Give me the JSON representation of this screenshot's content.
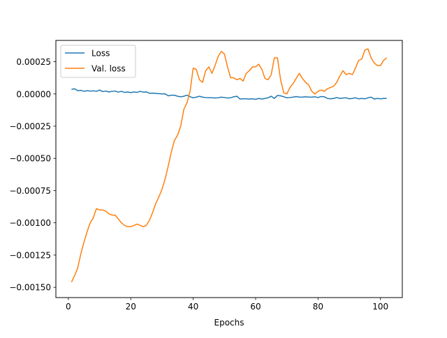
{
  "chart_data": {
    "type": "line",
    "title": "",
    "xlabel": "Epochs",
    "ylabel": "",
    "xlim": [
      -4,
      107
    ],
    "ylim": [
      -0.00158,
      0.000415
    ],
    "x_ticks": [
      0,
      20,
      40,
      60,
      80,
      100
    ],
    "x_tick_labels": [
      "0",
      "20",
      "40",
      "60",
      "80",
      "100"
    ],
    "y_ticks": [
      0.00025,
      0.0,
      -0.00025,
      -0.0005,
      -0.00075,
      -0.001,
      -0.00125,
      -0.0015
    ],
    "y_tick_labels": [
      "0.00025",
      "0.00000",
      "−0.00025",
      "−0.00050",
      "−0.00075",
      "−0.00100",
      "−0.00125",
      "−0.00150"
    ],
    "grid": false,
    "legend_position": "top-left",
    "series": [
      {
        "name": "Loss",
        "color": "#1f77b4",
        "points": [
          [
            1,
            3.5e-05
          ],
          [
            2,
            4e-05
          ],
          [
            3,
            2.5e-05
          ],
          [
            4,
            2.8e-05
          ],
          [
            5,
            2e-05
          ],
          [
            6,
            2.5e-05
          ],
          [
            7,
            2.2e-05
          ],
          [
            8,
            2.4e-05
          ],
          [
            9,
            2e-05
          ],
          [
            10,
            3e-05
          ],
          [
            11,
            1.8e-05
          ],
          [
            12,
            2.2e-05
          ],
          [
            13,
            1.5e-05
          ],
          [
            14,
            2e-05
          ],
          [
            15,
            2.2e-05
          ],
          [
            16,
            1.4e-05
          ],
          [
            17,
            2e-05
          ],
          [
            18,
            1.2e-05
          ],
          [
            19,
            1.5e-05
          ],
          [
            20,
            1e-05
          ],
          [
            21,
            1.5e-05
          ],
          [
            22,
            1.2e-05
          ],
          [
            23,
            2e-05
          ],
          [
            24,
            1.4e-05
          ],
          [
            25,
            1.5e-05
          ],
          [
            26,
            5e-06
          ],
          [
            27,
            6e-06
          ],
          [
            28,
            4e-06
          ],
          [
            29,
            2e-06
          ],
          [
            30,
            0.0
          ],
          [
            31,
            1e-06
          ],
          [
            32,
            -1.5e-05
          ],
          [
            33,
            -1e-05
          ],
          [
            34,
            -1e-05
          ],
          [
            35,
            -1.8e-05
          ],
          [
            36,
            -2.2e-05
          ],
          [
            37,
            -1.8e-05
          ],
          [
            38,
            -1e-05
          ],
          [
            39,
            -2.2e-05
          ],
          [
            40,
            -3e-05
          ],
          [
            41,
            -2.5e-05
          ],
          [
            42,
            -1.8e-05
          ],
          [
            43,
            -2.5e-05
          ],
          [
            44,
            -2.8e-05
          ],
          [
            45,
            -3e-05
          ],
          [
            46,
            -3e-05
          ],
          [
            47,
            -3.2e-05
          ],
          [
            48,
            -3e-05
          ],
          [
            49,
            -2.5e-05
          ],
          [
            50,
            -2.8e-05
          ],
          [
            51,
            -3.2e-05
          ],
          [
            52,
            -3e-05
          ],
          [
            53,
            -2.2e-05
          ],
          [
            54,
            -1.8e-05
          ],
          [
            55,
            -4e-05
          ],
          [
            56,
            -3.8e-05
          ],
          [
            57,
            -3.8e-05
          ],
          [
            58,
            -4e-05
          ],
          [
            59,
            -3.8e-05
          ],
          [
            60,
            -4.2e-05
          ],
          [
            61,
            -3.5e-05
          ],
          [
            62,
            -4e-05
          ],
          [
            63,
            -3.5e-05
          ],
          [
            64,
            -3e-05
          ],
          [
            65,
            -1.8e-05
          ],
          [
            66,
            -3.5e-05
          ],
          [
            67,
            -1.2e-05
          ],
          [
            68,
            -1.5e-05
          ],
          [
            69,
            -2.2e-05
          ],
          [
            70,
            -3e-05
          ],
          [
            71,
            -2.8e-05
          ],
          [
            72,
            -2.5e-05
          ],
          [
            73,
            -2e-05
          ],
          [
            74,
            -2.5e-05
          ],
          [
            75,
            -2.5e-05
          ],
          [
            76,
            -2.2e-05
          ],
          [
            77,
            -2.5e-05
          ],
          [
            78,
            -2.5e-05
          ],
          [
            79,
            -2.2e-05
          ],
          [
            80,
            -2.8e-05
          ],
          [
            81,
            -2e-05
          ],
          [
            82,
            -2.2e-05
          ],
          [
            83,
            -3.5e-05
          ],
          [
            84,
            -3.8e-05
          ],
          [
            85,
            -3.5e-05
          ],
          [
            86,
            -2.8e-05
          ],
          [
            87,
            -3.5e-05
          ],
          [
            88,
            -3.2e-05
          ],
          [
            89,
            -3e-05
          ],
          [
            90,
            -3.8e-05
          ],
          [
            91,
            -3.5e-05
          ],
          [
            92,
            -3e-05
          ],
          [
            93,
            -3.8e-05
          ],
          [
            94,
            -3.5e-05
          ],
          [
            95,
            -3.8e-05
          ],
          [
            96,
            -3e-05
          ],
          [
            97,
            -2.5e-05
          ],
          [
            98,
            -4e-05
          ],
          [
            99,
            -3.5e-05
          ],
          [
            100,
            -3.8e-05
          ],
          [
            101,
            -3.5e-05
          ],
          [
            102,
            -3.5e-05
          ]
        ]
      },
      {
        "name": "Val. loss",
        "color": "#ff7f0e",
        "points": [
          [
            1,
            -0.00146
          ],
          [
            2,
            -0.00141
          ],
          [
            3,
            -0.00135
          ],
          [
            4,
            -0.00124
          ],
          [
            5,
            -0.00115
          ],
          [
            6,
            -0.00107
          ],
          [
            7,
            -0.001
          ],
          [
            8,
            -0.00096
          ],
          [
            9,
            -0.00089
          ],
          [
            10,
            -0.0009
          ],
          [
            11,
            -0.0009
          ],
          [
            12,
            -0.00091
          ],
          [
            13,
            -0.00093
          ],
          [
            14,
            -0.00094
          ],
          [
            15,
            -0.00094
          ],
          [
            16,
            -0.00097
          ],
          [
            17,
            -0.001
          ],
          [
            18,
            -0.00102
          ],
          [
            19,
            -0.00103
          ],
          [
            20,
            -0.00103
          ],
          [
            21,
            -0.00102
          ],
          [
            22,
            -0.00101
          ],
          [
            23,
            -0.00102
          ],
          [
            24,
            -0.00103
          ],
          [
            25,
            -0.00102
          ],
          [
            26,
            -0.00098
          ],
          [
            27,
            -0.00092
          ],
          [
            28,
            -0.00085
          ],
          [
            29,
            -0.0008
          ],
          [
            30,
            -0.00074
          ],
          [
            31,
            -0.00066
          ],
          [
            32,
            -0.00056
          ],
          [
            33,
            -0.00045
          ],
          [
            34,
            -0.00036
          ],
          [
            35,
            -0.00032
          ],
          [
            36,
            -0.00025
          ],
          [
            37,
            -0.00012
          ],
          [
            38,
            -7e-05
          ],
          [
            39,
            2e-05
          ],
          [
            40,
            0.0002
          ],
          [
            41,
            0.00019
          ],
          [
            42,
            0.00011
          ],
          [
            43,
            9e-05
          ],
          [
            44,
            0.00018
          ],
          [
            45,
            0.00021
          ],
          [
            46,
            0.00016
          ],
          [
            47,
            0.00022
          ],
          [
            48,
            0.00029
          ],
          [
            49,
            0.00033
          ],
          [
            50,
            0.00031
          ],
          [
            51,
            0.00021
          ],
          [
            52,
            0.000125
          ],
          [
            53,
            0.000125
          ],
          [
            54,
            0.00011
          ],
          [
            55,
            0.00012
          ],
          [
            56,
            0.0001
          ],
          [
            57,
            0.00016
          ],
          [
            58,
            0.00018
          ],
          [
            59,
            0.00021
          ],
          [
            60,
            0.00021
          ],
          [
            61,
            0.00023
          ],
          [
            62,
            0.00019
          ],
          [
            63,
            0.00012
          ],
          [
            64,
            0.00011
          ],
          [
            65,
            0.00015
          ],
          [
            66,
            0.00028
          ],
          [
            67,
            0.00028
          ],
          [
            68,
            0.00011
          ],
          [
            69,
            1e-05
          ],
          [
            70,
            0.0
          ],
          [
            71,
            5e-05
          ],
          [
            72,
            8e-05
          ],
          [
            73,
            0.00012
          ],
          [
            74,
            0.00016
          ],
          [
            75,
            0.00012
          ],
          [
            76,
            9e-05
          ],
          [
            77,
            7e-05
          ],
          [
            78,
            2e-05
          ],
          [
            79,
            0.0
          ],
          [
            80,
            2e-05
          ],
          [
            81,
            3e-05
          ],
          [
            82,
            2e-05
          ],
          [
            83,
            4e-05
          ],
          [
            84,
            5e-05
          ],
          [
            85,
            6e-05
          ],
          [
            86,
            9e-05
          ],
          [
            87,
            0.00014
          ],
          [
            88,
            0.00018
          ],
          [
            89,
            0.00015
          ],
          [
            90,
            0.00016
          ],
          [
            91,
            0.00015
          ],
          [
            92,
            0.0002
          ],
          [
            93,
            0.00026
          ],
          [
            94,
            0.00027
          ],
          [
            95,
            0.00034
          ],
          [
            96,
            0.00035
          ],
          [
            97,
            0.00028
          ],
          [
            98,
            0.00024
          ],
          [
            99,
            0.00022
          ],
          [
            100,
            0.00022
          ],
          [
            101,
            0.00026
          ],
          [
            102,
            0.00028
          ]
        ]
      }
    ]
  }
}
